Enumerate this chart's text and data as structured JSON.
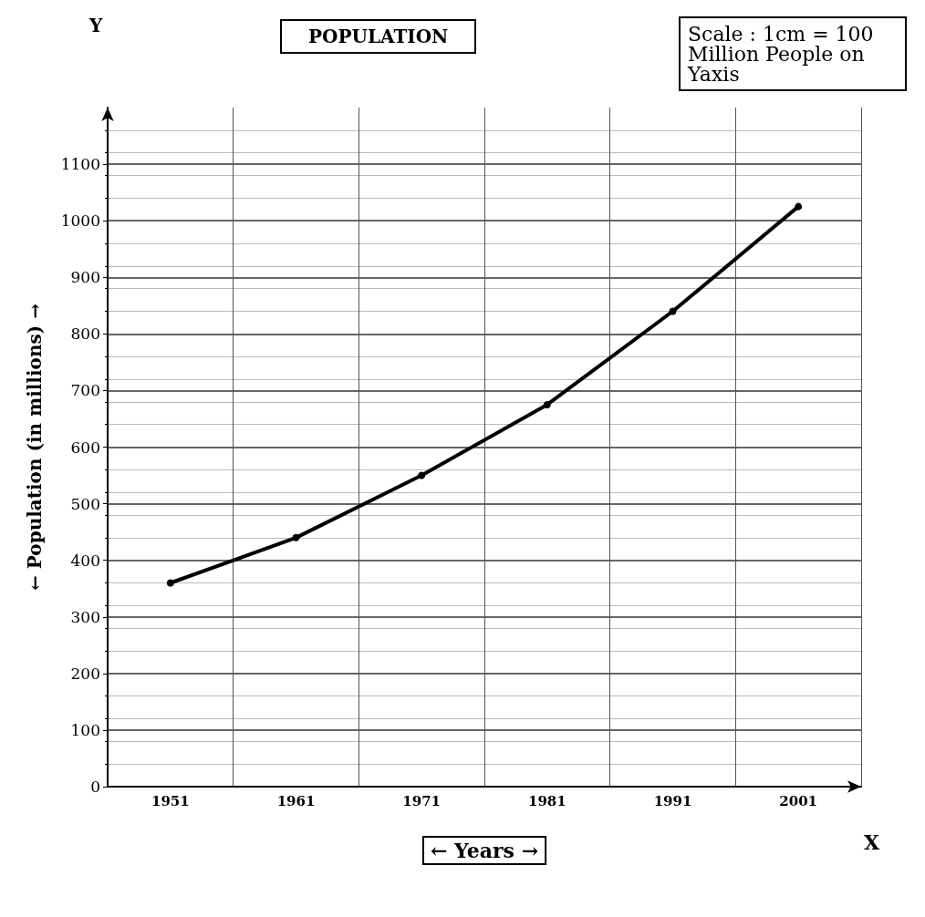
{
  "chart_data": {
    "type": "line",
    "title": "POPULATION",
    "xlabel": "← Years →",
    "ylabel": "← Population (in millions) →",
    "categories": [
      "1951",
      "1961",
      "1971",
      "1981",
      "1991",
      "2001"
    ],
    "values": [
      360,
      440,
      550,
      675,
      840,
      1025
    ],
    "color": "#000000",
    "ylim": [
      0,
      1200
    ],
    "yticks": [
      0,
      100,
      200,
      300,
      400,
      500,
      600,
      700,
      800,
      900,
      1000,
      1100
    ],
    "grid": true,
    "marker": "circle",
    "line_style": "solid",
    "annotations": [
      "Scale : 1cm = 100 Million People on Yaxis",
      "Y",
      "X"
    ]
  }
}
